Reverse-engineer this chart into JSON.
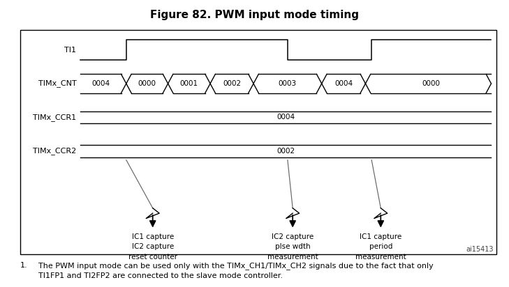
{
  "title": "Figure 82. PWM input mode timing",
  "title_fontsize": 11,
  "background_color": "#ffffff",
  "watermark": "ai15413",
  "signal_labels": [
    "TI1",
    "TIMx_CNT",
    "TIMx_CCR1",
    "TIMx_CCR2"
  ],
  "cnt_values": [
    "0004",
    "0000",
    "0001",
    "0002",
    "0003",
    "0004",
    "0000"
  ],
  "ccr1_value": "0004",
  "ccr2_value": "0002",
  "footnote_number": "1.",
  "footnote_text": "The PWM input mode can be used only with the TIMx_CH1/TIMx_CH2 signals due to the fact that only\nTI1FP1 and TI2FP2 are connected to the slave mode controller.",
  "ann_labels": [
    "IC1 capture\nIC2 capture\nreset counter",
    "IC2 capture\nplse wdth\nmeasurement",
    "IC1 capture\nperiod\nmeasurement"
  ],
  "fig_width": 7.29,
  "fig_height": 4.12,
  "fig_dpi": 100
}
